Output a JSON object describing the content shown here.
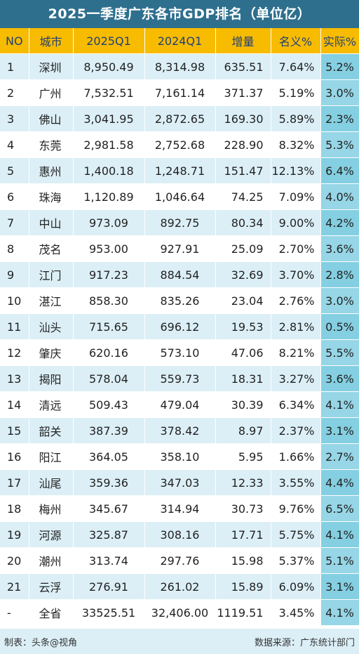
{
  "title": "2025一季度广东各市GDP排名（单位亿）",
  "columns": [
    "NO",
    "城市",
    "2025Q1",
    "2024Q1",
    "增量",
    "名义%",
    "实际%"
  ],
  "rows": [
    [
      "1",
      "深圳",
      "8,950.49",
      "8,314.98",
      "635.51",
      "7.64%",
      "5.2%"
    ],
    [
      "2",
      "广州",
      "7,532.51",
      "7,161.14",
      "371.37",
      "5.19%",
      "3.0%"
    ],
    [
      "3",
      "佛山",
      "3,041.95",
      "2,872.65",
      "169.30",
      "5.89%",
      "2.3%"
    ],
    [
      "4",
      "东莞",
      "2,981.58",
      "2,752.68",
      "228.90",
      "8.32%",
      "5.3%"
    ],
    [
      "5",
      "惠州",
      "1,400.18",
      "1,248.71",
      "151.47",
      "12.13%",
      "6.4%"
    ],
    [
      "6",
      "珠海",
      "1,120.89",
      "1,046.64",
      "74.25",
      "7.09%",
      "4.0%"
    ],
    [
      "7",
      "中山",
      "973.09",
      "892.75",
      "80.34",
      "9.00%",
      "4.2%"
    ],
    [
      "8",
      "茂名",
      "953.00",
      "927.91",
      "25.09",
      "2.70%",
      "3.6%"
    ],
    [
      "9",
      "江门",
      "917.23",
      "884.54",
      "32.69",
      "3.70%",
      "2.8%"
    ],
    [
      "10",
      "湛江",
      "858.30",
      "835.26",
      "23.04",
      "2.76%",
      "3.0%"
    ],
    [
      "11",
      "汕头",
      "715.65",
      "696.12",
      "19.53",
      "2.81%",
      "0.5%"
    ],
    [
      "12",
      "肇庆",
      "620.16",
      "573.10",
      "47.06",
      "8.21%",
      "5.5%"
    ],
    [
      "13",
      "揭阳",
      "578.04",
      "559.73",
      "18.31",
      "3.27%",
      "3.6%"
    ],
    [
      "14",
      "清远",
      "509.43",
      "479.04",
      "30.39",
      "6.34%",
      "4.1%"
    ],
    [
      "15",
      "韶关",
      "387.39",
      "378.42",
      "8.97",
      "2.37%",
      "3.1%"
    ],
    [
      "16",
      "阳江",
      "364.05",
      "358.10",
      "5.95",
      "1.66%",
      "2.7%"
    ],
    [
      "17",
      "汕尾",
      "359.36",
      "347.03",
      "12.33",
      "3.55%",
      "4.4%"
    ],
    [
      "18",
      "梅州",
      "345.67",
      "314.94",
      "30.73",
      "9.76%",
      "6.5%"
    ],
    [
      "19",
      "河源",
      "325.87",
      "308.16",
      "17.71",
      "5.75%",
      "4.1%"
    ],
    [
      "20",
      "潮州",
      "313.74",
      "297.76",
      "15.98",
      "5.37%",
      "5.1%"
    ],
    [
      "21",
      "云浮",
      "276.91",
      "261.02",
      "15.89",
      "6.09%",
      "3.1%"
    ],
    [
      "-",
      "全省",
      "33525.51",
      "32,406.00",
      "1119.51",
      "3.45%",
      "4.1%"
    ]
  ],
  "footer": {
    "author": "制表：头条@视角",
    "source": "数据来源：广东统计部门"
  },
  "colors": {
    "title_bg": "#2e6f8e",
    "header_bg": "#f7bb00",
    "header_text": "#1f3f77",
    "row_alt": "#dceff7",
    "real_col": "#84cfe1"
  },
  "chart_data": {
    "type": "table",
    "title": "2025一季度广东各市GDP排名（单位亿）",
    "columns": [
      "NO",
      "城市",
      "2025Q1",
      "2024Q1",
      "增量",
      "名义%",
      "实际%"
    ],
    "rows": [
      [
        "1",
        "深圳",
        8950.49,
        8314.98,
        635.51,
        7.64,
        5.2
      ],
      [
        "2",
        "广州",
        7532.51,
        7161.14,
        371.37,
        5.19,
        3.0
      ],
      [
        "3",
        "佛山",
        3041.95,
        2872.65,
        169.3,
        5.89,
        2.3
      ],
      [
        "4",
        "东莞",
        2981.58,
        2752.68,
        228.9,
        8.32,
        5.3
      ],
      [
        "5",
        "惠州",
        1400.18,
        1248.71,
        151.47,
        12.13,
        6.4
      ],
      [
        "6",
        "珠海",
        1120.89,
        1046.64,
        74.25,
        7.09,
        4.0
      ],
      [
        "7",
        "中山",
        973.09,
        892.75,
        80.34,
        9.0,
        4.2
      ],
      [
        "8",
        "茂名",
        953.0,
        927.91,
        25.09,
        2.7,
        3.6
      ],
      [
        "9",
        "江门",
        917.23,
        884.54,
        32.69,
        3.7,
        2.8
      ],
      [
        "10",
        "湛江",
        858.3,
        835.26,
        23.04,
        2.76,
        3.0
      ],
      [
        "11",
        "汕头",
        715.65,
        696.12,
        19.53,
        2.81,
        0.5
      ],
      [
        "12",
        "肇庆",
        620.16,
        573.1,
        47.06,
        8.21,
        5.5
      ],
      [
        "13",
        "揭阳",
        578.04,
        559.73,
        18.31,
        3.27,
        3.6
      ],
      [
        "14",
        "清远",
        509.43,
        479.04,
        30.39,
        6.34,
        4.1
      ],
      [
        "15",
        "韶关",
        387.39,
        378.42,
        8.97,
        2.37,
        3.1
      ],
      [
        "16",
        "阳江",
        364.05,
        358.1,
        5.95,
        1.66,
        2.7
      ],
      [
        "17",
        "汕尾",
        359.36,
        347.03,
        12.33,
        3.55,
        4.4
      ],
      [
        "18",
        "梅州",
        345.67,
        314.94,
        30.73,
        9.76,
        6.5
      ],
      [
        "19",
        "河源",
        325.87,
        308.16,
        17.71,
        5.75,
        4.1
      ],
      [
        "20",
        "潮州",
        313.74,
        297.76,
        15.98,
        5.37,
        5.1
      ],
      [
        "21",
        "云浮",
        276.91,
        261.02,
        15.89,
        6.09,
        3.1
      ],
      [
        "-",
        "全省",
        33525.51,
        32406.0,
        1119.51,
        3.45,
        4.1
      ]
    ]
  }
}
